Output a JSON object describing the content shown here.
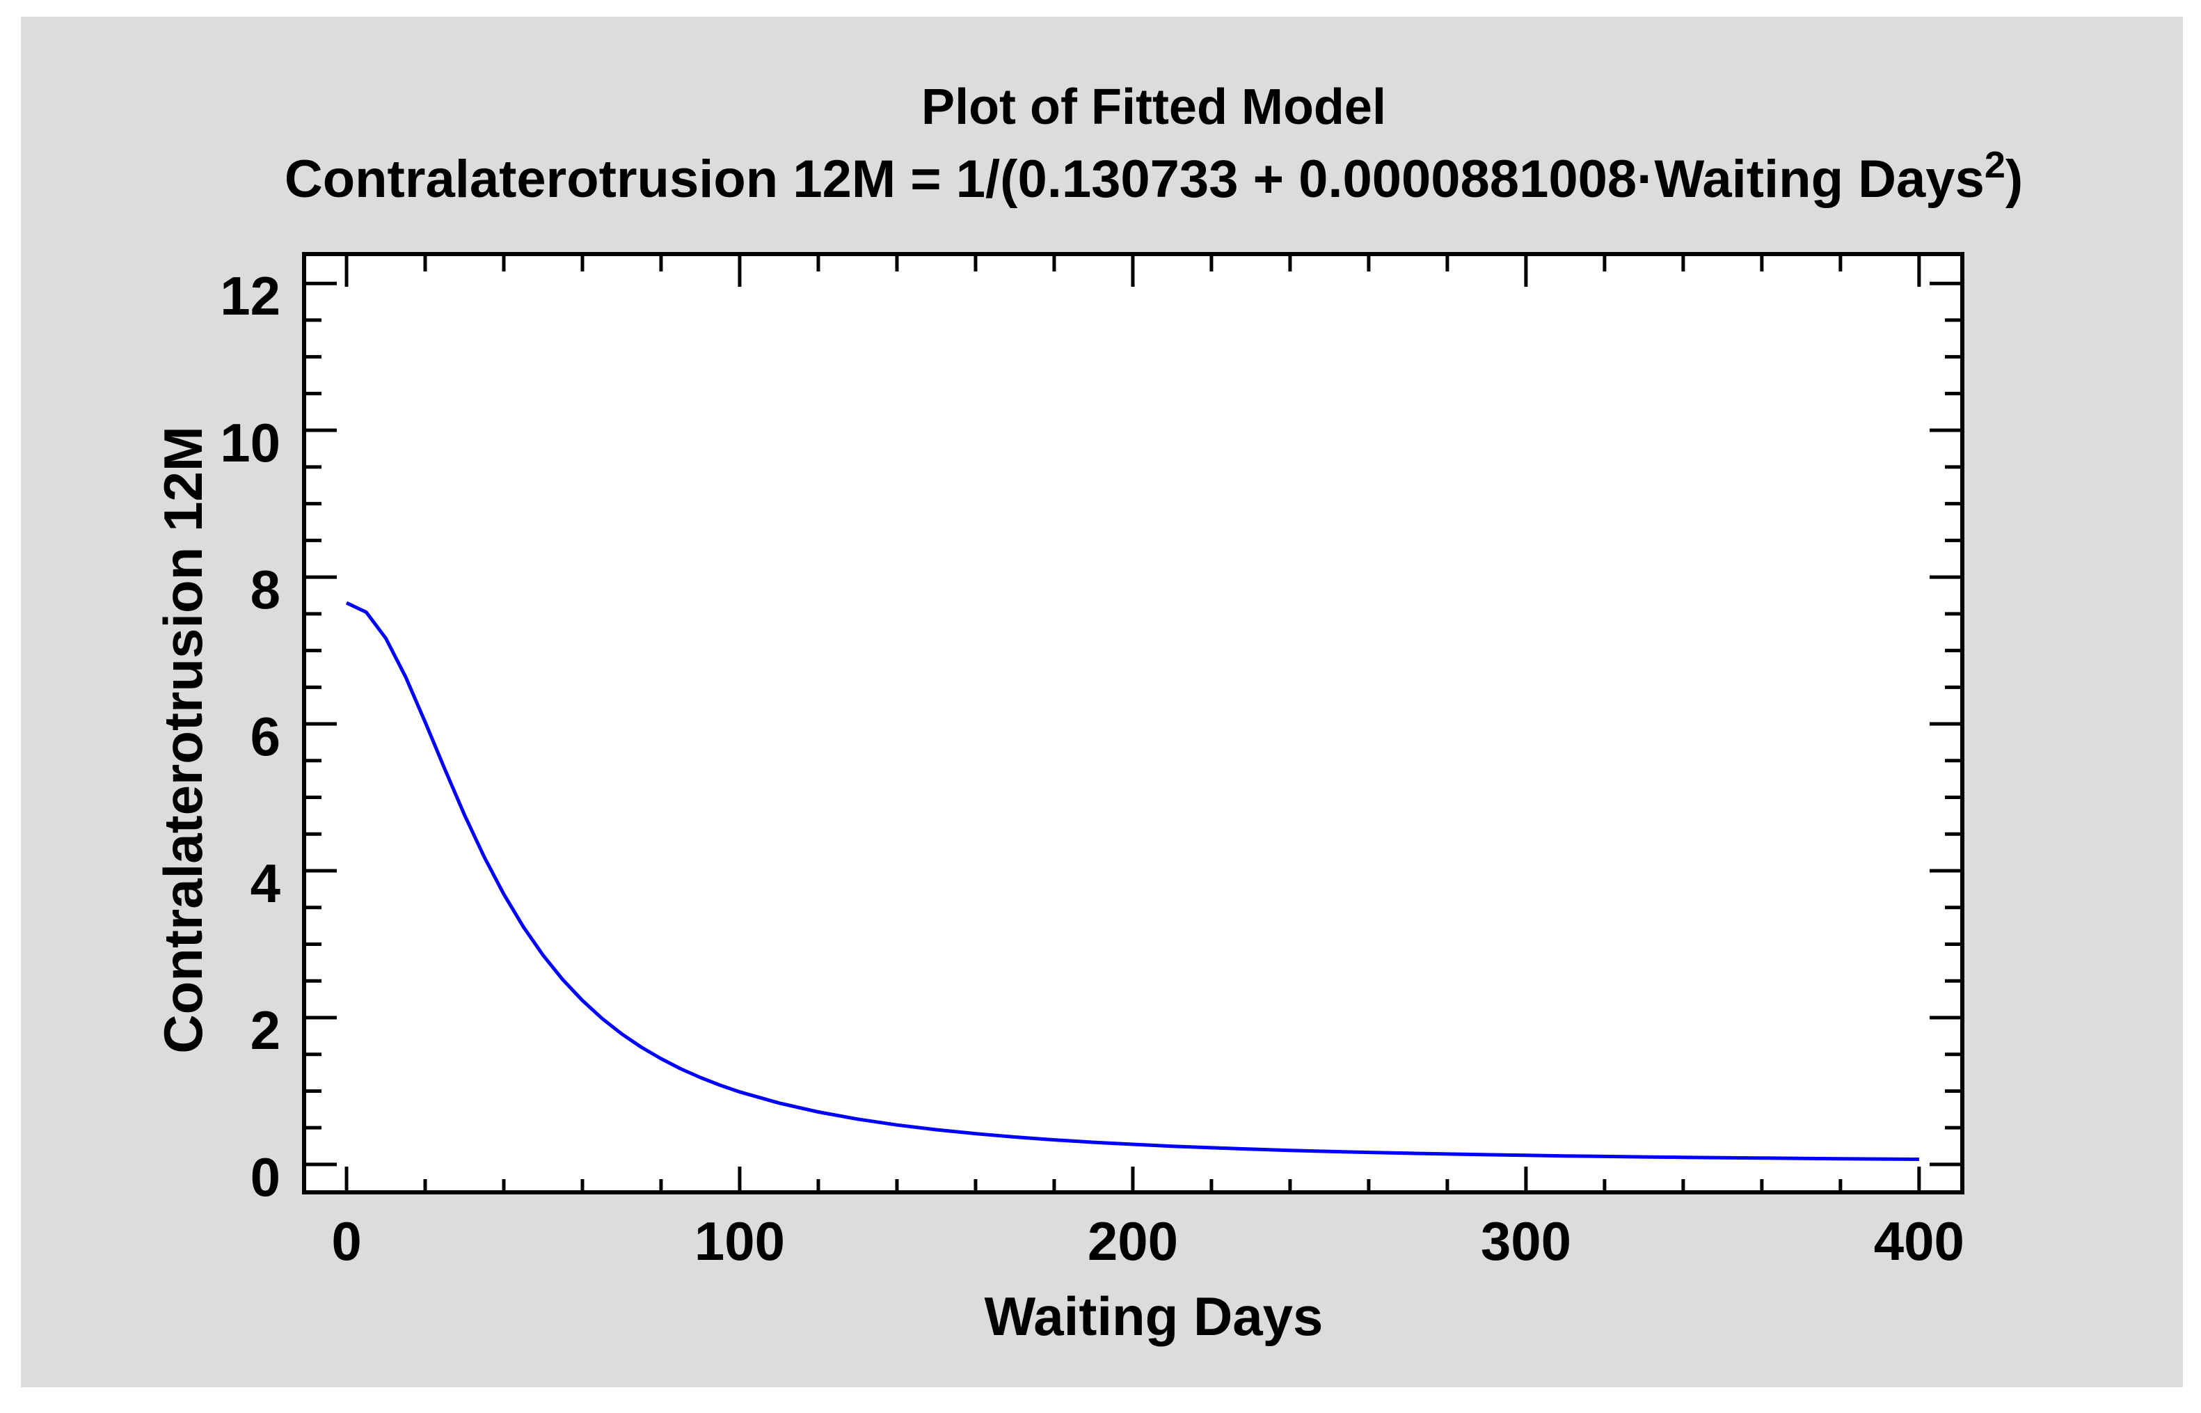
{
  "window": {
    "background_color": "#ffffff",
    "panel_color": "#dcdcdc"
  },
  "title": {
    "line1": "Plot of Fitted Model",
    "line2_prefix": "Contralaterotrusion 12M = 1/(0.130733 + 0.0000881008·Waiting Days",
    "line2_superscript": "2",
    "line2_suffix": ")"
  },
  "chart_data": {
    "type": "line",
    "title": "Plot of Fitted Model",
    "subtitle": "Contralaterotrusion 12M = 1/(0.130733 + 0.0000881008·Waiting Days^2)",
    "model": {
      "response": "Contralaterotrusion 12M",
      "predictor": "Waiting Days",
      "intercept": 0.130733,
      "slope": 8.81008e-05,
      "form": "Y = 1/(a + b*X^2)"
    },
    "xlabel": "Waiting Days",
    "ylabel": "Contralaterotrusion 12M",
    "xlim": [
      -10.8,
      411
    ],
    "ylim": [
      -0.38,
      12.4
    ],
    "xticks": [
      0,
      100,
      200,
      300,
      400
    ],
    "yticks": [
      0,
      2,
      4,
      6,
      8,
      10,
      12
    ],
    "x_minor_step": 20,
    "y_minor_step": 0.5,
    "x_major_max": 400,
    "y_major_max": 12,
    "grid": false,
    "legend_position": "none",
    "line_color": "#0000ff",
    "axis_color": "#000000",
    "plot_bg": "#ffffff",
    "series": [
      {
        "name": "Fitted model",
        "x": [
          0,
          5,
          10,
          15,
          20,
          25,
          30,
          35,
          40,
          45,
          50,
          55,
          60,
          65,
          70,
          75,
          80,
          85,
          90,
          95,
          100,
          110,
          120,
          130,
          140,
          150,
          160,
          170,
          180,
          190,
          200,
          210,
          220,
          230,
          240,
          250,
          260,
          270,
          280,
          290,
          300,
          310,
          320,
          330,
          340,
          350,
          360,
          370,
          380,
          390,
          400
        ],
        "y": [
          7.649,
          7.522,
          7.166,
          6.642,
          6.025,
          5.382,
          4.761,
          4.19,
          3.681,
          3.235,
          2.849,
          2.517,
          2.233,
          1.988,
          1.778,
          1.597,
          1.44,
          1.303,
          1.184,
          1.08,
          0.988,
          0.836,
          0.715,
          0.617,
          0.538,
          0.473,
          0.419,
          0.374,
          0.335,
          0.302,
          0.274,
          0.249,
          0.228,
          0.209,
          0.192,
          0.177,
          0.164,
          0.153,
          0.142,
          0.133,
          0.124,
          0.116,
          0.109,
          0.103,
          0.097,
          0.092,
          0.087,
          0.082,
          0.078,
          0.074,
          0.07
        ]
      }
    ]
  }
}
